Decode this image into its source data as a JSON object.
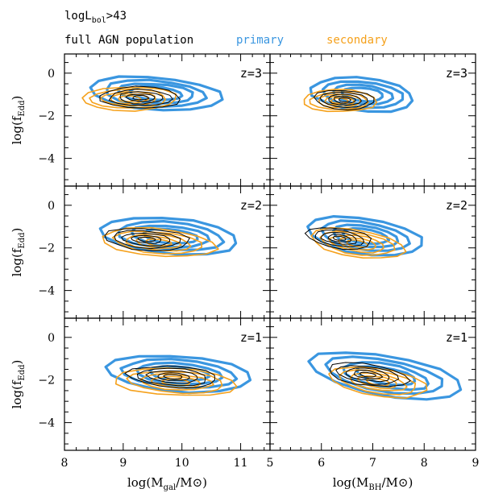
{
  "header": {
    "luminosity_cut_main": "logL",
    "luminosity_cut_sub": "bol",
    "luminosity_cut_tail": ">43",
    "legend_full": "full AGN population",
    "legend_primary": "primary",
    "legend_secondary": "secondary"
  },
  "colors": {
    "full": "#000000",
    "primary": "#3a96e0",
    "secondary": "#f5a11c"
  },
  "chart_data": {
    "type": "contour",
    "grid": "2 columns x 3 rows",
    "legend_placement": "top",
    "columns": [
      {
        "xlabel_main": "log(M",
        "xlabel_sub": "gal",
        "xlabel_tail": "/M",
        "xlabel_sun": "⊙",
        "xlabel_end": ")",
        "xlim": [
          8,
          11.5
        ],
        "xticks": [
          "8",
          "9",
          "10",
          "11"
        ]
      },
      {
        "xlabel_main": "log(M",
        "xlabel_sub": "BH",
        "xlabel_tail": "/M",
        "xlabel_sun": "⊙",
        "xlabel_end": ")",
        "xlim": [
          5,
          9
        ],
        "xticks": [
          "5",
          "6",
          "7",
          "8",
          "9"
        ]
      }
    ],
    "ylabel_main": "log(f",
    "ylabel_sub": "Edd",
    "ylabel_end": ")",
    "ylim": [
      -5.3,
      0.9
    ],
    "yticks": [
      "0",
      "−2",
      "−4"
    ],
    "yticks_values": [
      0,
      -2,
      -4
    ],
    "rows": [
      {
        "label": "z=3"
      },
      {
        "label": "z=2"
      },
      {
        "label": "z=1"
      }
    ],
    "panels": [
      {
        "row": 0,
        "col": 0,
        "full": {
          "cx": 9.3,
          "cy": -1.15,
          "rx": 0.75,
          "ry": 0.55,
          "tilt": -0.12
        },
        "primary": {
          "cx": 9.55,
          "cy": -0.95,
          "rx": 1.1,
          "ry": 0.75,
          "tilt": -0.25
        },
        "secondary": {
          "cx": 9.1,
          "cy": -1.2,
          "rx": 0.85,
          "ry": 0.6,
          "tilt": -0.05
        }
      },
      {
        "row": 0,
        "col": 1,
        "full": {
          "cx": 6.45,
          "cy": -1.25,
          "rx": 0.65,
          "ry": 0.5,
          "tilt": -0.2
        },
        "primary": {
          "cx": 6.8,
          "cy": -1.0,
          "rx": 1.0,
          "ry": 0.75,
          "tilt": -0.3
        },
        "secondary": {
          "cx": 6.35,
          "cy": -1.3,
          "rx": 0.75,
          "ry": 0.55,
          "tilt": -0.1
        }
      },
      {
        "row": 1,
        "col": 0,
        "full": {
          "cx": 9.4,
          "cy": -1.6,
          "rx": 0.8,
          "ry": 0.55,
          "tilt": -0.25
        },
        "primary": {
          "cx": 9.8,
          "cy": -1.45,
          "rx": 1.15,
          "ry": 0.8,
          "tilt": -0.3
        },
        "secondary": {
          "cx": 9.6,
          "cy": -1.75,
          "rx": 1.0,
          "ry": 0.65,
          "tilt": -0.3
        }
      },
      {
        "row": 1,
        "col": 1,
        "full": {
          "cx": 6.35,
          "cy": -1.55,
          "rx": 0.7,
          "ry": 0.5,
          "tilt": -0.35
        },
        "primary": {
          "cx": 6.85,
          "cy": -1.45,
          "rx": 1.1,
          "ry": 0.8,
          "tilt": -0.4
        },
        "secondary": {
          "cx": 6.7,
          "cy": -1.8,
          "rx": 0.95,
          "ry": 0.65,
          "tilt": -0.4
        }
      },
      {
        "row": 2,
        "col": 0,
        "full": {
          "cx": 9.85,
          "cy": -1.85,
          "rx": 0.85,
          "ry": 0.55,
          "tilt": -0.2
        },
        "primary": {
          "cx": 9.95,
          "cy": -1.7,
          "rx": 1.25,
          "ry": 0.8,
          "tilt": -0.25
        },
        "secondary": {
          "cx": 9.9,
          "cy": -2.1,
          "rx": 1.1,
          "ry": 0.65,
          "tilt": -0.2
        }
      },
      {
        "row": 2,
        "col": 1,
        "full": {
          "cx": 6.9,
          "cy": -1.75,
          "rx": 0.85,
          "ry": 0.55,
          "tilt": -0.35
        },
        "primary": {
          "cx": 7.25,
          "cy": -1.8,
          "rx": 1.45,
          "ry": 0.9,
          "tilt": -0.45
        },
        "secondary": {
          "cx": 7.1,
          "cy": -2.1,
          "rx": 1.0,
          "ry": 0.65,
          "tilt": -0.4
        }
      }
    ]
  }
}
